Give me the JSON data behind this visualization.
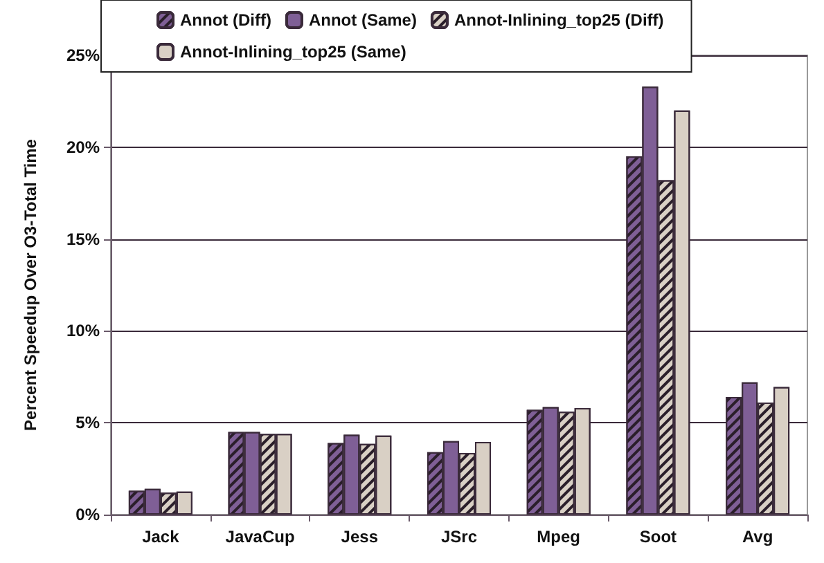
{
  "chart_data": {
    "type": "bar",
    "ylabel": "Percent Speedup Over O3-Total Time",
    "categories": [
      "Jack",
      "JavaCup",
      "Jess",
      "JSrc",
      "Mpeg",
      "Soot",
      "Avg"
    ],
    "series": [
      {
        "name": "Annot (Diff)",
        "color": "#7f5f96",
        "values": [
          1.3,
          4.5,
          3.9,
          3.4,
          5.7,
          19.5,
          6.4
        ]
      },
      {
        "name": "Annot (Same)",
        "color": "#7f5f96",
        "values": [
          1.4,
          4.5,
          4.35,
          4.0,
          5.85,
          23.3,
          7.2
        ]
      },
      {
        "name": "Annot-Inlining_top25 (Diff)",
        "color": "#d9d0c5",
        "values": [
          1.2,
          4.4,
          3.85,
          3.35,
          5.6,
          18.2,
          6.1
        ]
      },
      {
        "name": "Annot-Inlining_top25 (Same)",
        "color": "#d9d0c5",
        "values": [
          1.25,
          4.4,
          4.3,
          3.95,
          5.8,
          22.0,
          6.95
        ]
      }
    ],
    "ylim": [
      0,
      25
    ],
    "yticks": [
      {
        "value": 0,
        "label": "0%"
      },
      {
        "value": 5,
        "label": "5%"
      },
      {
        "value": 10,
        "label": "10%"
      },
      {
        "value": 15,
        "label": "15%"
      },
      {
        "value": 20,
        "label": "20%"
      },
      {
        "value": 25,
        "label": "25%"
      }
    ],
    "grid": "y",
    "legend": "top"
  }
}
